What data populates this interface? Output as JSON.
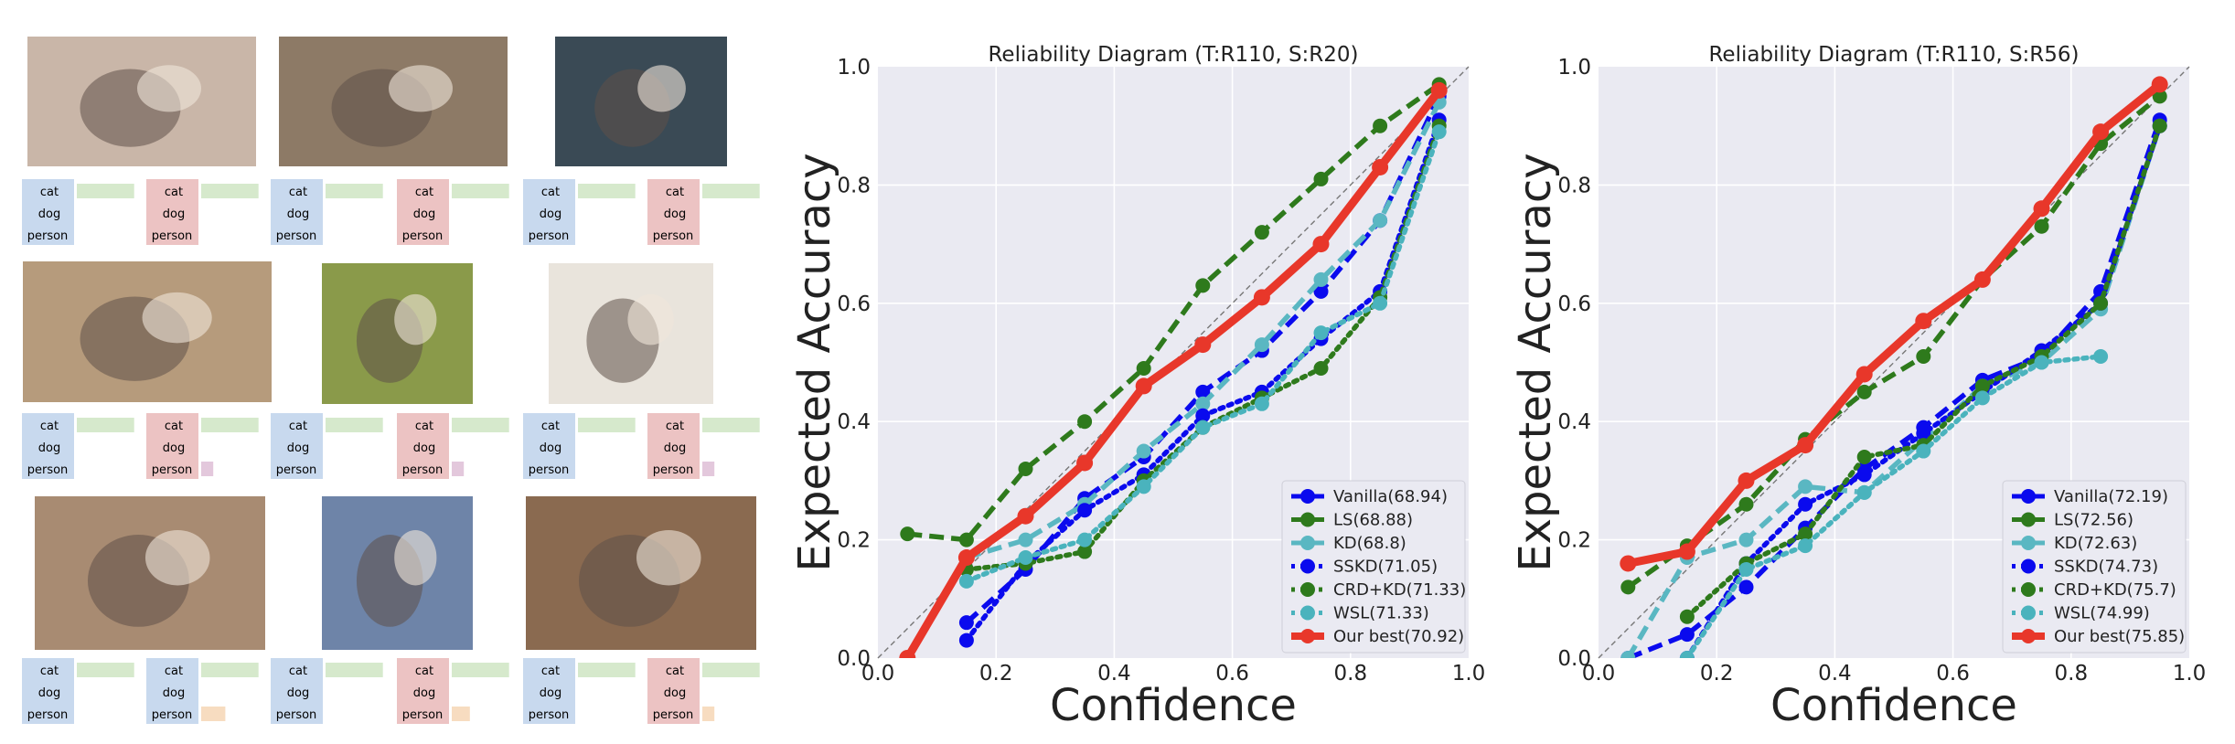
{
  "left_panel": {
    "class_labels": [
      "cat",
      "dog",
      "person"
    ],
    "rows": [
      {
        "photos": [
          {
            "icon": "kitten-photo",
            "alt": ""
          },
          {
            "icon": "kittens-playing-photo",
            "alt": ""
          },
          {
            "icon": "cat-with-mask-photo",
            "alt": ""
          }
        ],
        "bars": [
          {
            "color": "blue",
            "v": [
              0.95,
              0,
              0
            ]
          },
          {
            "color": "red",
            "v": [
              0.95,
              0,
              0
            ]
          },
          {
            "color": "blue",
            "v": [
              0.95,
              0,
              0
            ]
          },
          {
            "color": "red",
            "v": [
              0.95,
              0,
              0
            ]
          },
          {
            "color": "blue",
            "v": [
              0.95,
              0,
              0
            ]
          },
          {
            "color": "red",
            "v": [
              0.95,
              0,
              0
            ]
          }
        ]
      },
      {
        "photos": [
          {
            "icon": "cat-and-dog-photo",
            "alt": ""
          },
          {
            "icon": "puppy-and-kitten-photo",
            "alt": ""
          },
          {
            "icon": "dog-and-cat-photo",
            "alt": ""
          }
        ],
        "bars": [
          {
            "color": "blue",
            "v": [
              0.95,
              0,
              0
            ]
          },
          {
            "color": "red",
            "v": [
              0.95,
              0.0,
              0.2
            ]
          },
          {
            "color": "blue",
            "v": [
              0.95,
              0,
              0
            ]
          },
          {
            "color": "red",
            "v": [
              0.95,
              0.0,
              0.2
            ]
          },
          {
            "color": "blue",
            "v": [
              0.95,
              0,
              0
            ]
          },
          {
            "color": "red",
            "v": [
              0.95,
              0.0,
              0.2
            ]
          }
        ]
      },
      {
        "photos": [
          {
            "icon": "girl-and-cat-photo",
            "alt": ""
          },
          {
            "icon": "child-and-cat-photo",
            "alt": ""
          },
          {
            "icon": "man-and-cat-photo",
            "alt": ""
          }
        ],
        "bars": [
          {
            "color": "blue",
            "v": [
              0.95,
              0,
              0
            ]
          },
          {
            "color": "blue",
            "v": [
              0.95,
              0,
              0.4
            ]
          },
          {
            "color": "blue",
            "v": [
              0.95,
              0,
              0
            ]
          },
          {
            "color": "red",
            "v": [
              0.95,
              0,
              0.3
            ]
          },
          {
            "color": "blue",
            "v": [
              0.95,
              0,
              0
            ]
          },
          {
            "color": "red",
            "v": [
              0.95,
              0,
              0.2
            ]
          }
        ]
      }
    ]
  },
  "colors": {
    "plot_bg": "#eaeaf2",
    "grid": "#ffffff",
    "Vanilla": "#0a0aee",
    "LS": "#2e7a1c",
    "KD": "#5ab7c2",
    "SSKD": "#0a0aee",
    "CRD+KD": "#2e7a1c",
    "WSL": "#4ab3bd",
    "Our best": "#e8372a",
    "bar_blue": "#c8d9ee",
    "bar_red": "#ecc3c3",
    "bar_green": "#d6e9cc",
    "bar_purple": "#e3c8dc",
    "bar_orange": "#f7dcc0"
  },
  "chart_data": [
    {
      "type": "line",
      "title": "Reliability Diagram (T:R110, S:R20)",
      "xlabel": "Confidence",
      "ylabel": "Expected Accuracy",
      "xlim": [
        0.0,
        1.0
      ],
      "ylim": [
        0.0,
        1.0
      ],
      "xticks": [
        "0.0",
        "0.2",
        "0.4",
        "0.6",
        "0.8",
        "1.0"
      ],
      "yticks": [
        "0.0",
        "0.2",
        "0.4",
        "0.6",
        "0.8",
        "1.0"
      ],
      "grid": true,
      "legend_position": "lower-right",
      "diagonal": true,
      "x": [
        0.05,
        0.15,
        0.25,
        0.35,
        0.45,
        0.55,
        0.65,
        0.75,
        0.85,
        0.95
      ],
      "series": [
        {
          "name": "Vanilla(68.94)",
          "style": "dashed",
          "values": [
            null,
            0.06,
            0.15,
            0.27,
            0.34,
            0.45,
            0.52,
            0.62,
            0.74,
            0.95
          ]
        },
        {
          "name": "LS(68.88)",
          "style": "dashed",
          "values": [
            0.21,
            0.2,
            0.32,
            0.4,
            0.49,
            0.63,
            0.72,
            0.81,
            0.9,
            0.97
          ]
        },
        {
          "name": "KD(68.8)",
          "style": "dashed",
          "values": [
            null,
            0.17,
            0.2,
            0.26,
            0.35,
            0.43,
            0.53,
            0.64,
            0.74,
            0.94
          ]
        },
        {
          "name": "SSKD(71.05)",
          "style": "dotted",
          "values": [
            null,
            0.03,
            0.16,
            0.25,
            0.31,
            0.41,
            0.45,
            0.54,
            0.62,
            0.91
          ]
        },
        {
          "name": "CRD+KD(71.33)",
          "style": "dotted",
          "values": [
            null,
            0.15,
            0.16,
            0.18,
            0.3,
            0.39,
            0.44,
            0.49,
            0.61,
            0.9
          ]
        },
        {
          "name": "WSL(71.33)",
          "style": "dotted",
          "values": [
            null,
            0.13,
            0.17,
            0.2,
            0.29,
            0.39,
            0.43,
            0.55,
            0.6,
            0.89
          ]
        },
        {
          "name": "Our best(70.92)",
          "style": "solid",
          "values": [
            0.0,
            0.17,
            0.24,
            0.33,
            0.46,
            0.53,
            0.61,
            0.7,
            0.83,
            0.96
          ]
        }
      ]
    },
    {
      "type": "line",
      "title": "Reliability Diagram (T:R110, S:R56)",
      "xlabel": "Confidence",
      "ylabel": "Expected Accuracy",
      "xlim": [
        0.0,
        1.0
      ],
      "ylim": [
        0.0,
        1.0
      ],
      "xticks": [
        "0.0",
        "0.2",
        "0.4",
        "0.6",
        "0.8",
        "1.0"
      ],
      "yticks": [
        "0.0",
        "0.2",
        "0.4",
        "0.6",
        "0.8",
        "1.0"
      ],
      "grid": true,
      "legend_position": "lower-right",
      "diagonal": true,
      "x": [
        0.05,
        0.15,
        0.25,
        0.35,
        0.45,
        0.55,
        0.65,
        0.75,
        0.85,
        0.95
      ],
      "series": [
        {
          "name": "Vanilla(72.19)",
          "style": "dashed",
          "values": [
            0.0,
            0.04,
            0.12,
            0.22,
            0.32,
            0.39,
            0.47,
            0.51,
            0.62,
            0.91
          ]
        },
        {
          "name": "LS(72.56)",
          "style": "dashed",
          "values": [
            0.12,
            0.19,
            0.26,
            0.37,
            0.45,
            0.51,
            0.64,
            0.73,
            0.87,
            0.95
          ]
        },
        {
          "name": "KD(72.63)",
          "style": "dashed",
          "values": [
            0.0,
            0.17,
            0.2,
            0.29,
            0.28,
            0.37,
            0.46,
            0.5,
            0.59,
            0.9
          ]
        },
        {
          "name": "SSKD(74.73)",
          "style": "dotted",
          "values": [
            null,
            0.0,
            0.16,
            0.26,
            0.31,
            0.38,
            0.45,
            0.52,
            0.6,
            0.9
          ]
        },
        {
          "name": "CRD+KD(75.7)",
          "style": "dotted",
          "values": [
            null,
            0.07,
            0.16,
            0.21,
            0.34,
            0.36,
            0.46,
            0.51,
            0.6,
            0.9
          ]
        },
        {
          "name": "WSL(74.99)",
          "style": "dotted",
          "values": [
            null,
            0.0,
            0.15,
            0.19,
            0.28,
            0.35,
            0.44,
            0.5,
            0.51,
            null
          ]
        },
        {
          "name": "Our best(75.85)",
          "style": "solid",
          "values": [
            0.16,
            0.18,
            0.3,
            0.36,
            0.48,
            0.57,
            0.64,
            0.76,
            0.89,
            0.97
          ]
        }
      ]
    }
  ]
}
